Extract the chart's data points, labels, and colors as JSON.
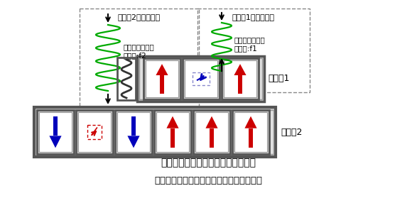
{
  "title_line1": "今回実証した多層記録方式の模式図",
  "title_line2": "強磁性共鳴周波数の異なる層を多層化する",
  "label_layer1": "記録層1",
  "label_layer2": "記録層2",
  "label_write1": "記録層1の書き込み",
  "label_write2": "記録層2の書き込み",
  "label_micro1": "マイクロ波磁界\n周波数:f1",
  "label_micro2": "マイクロ波磁界\n周波数:f2",
  "bg_color": "#ffffff",
  "arrow_red": "#cc0000",
  "arrow_blue": "#0000bb",
  "spiral_color": "#00aa00",
  "text_color": "#000000",
  "gray_dark": "#555555",
  "gray_mid": "#999999",
  "gray_light": "#cccccc",
  "gray_fill": "#c8c8c8",
  "white": "#ffffff"
}
